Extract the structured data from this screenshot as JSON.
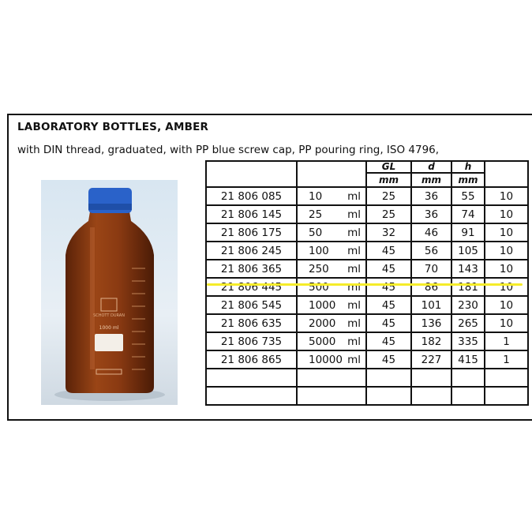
{
  "title": "LABORATORY BOTTLES, AMBER",
  "subtitle": "with DIN thread, graduated,  with  PP blue screw cap, PP pouring ring,  ISO 4796,",
  "headers": [
    {
      "top": "",
      "unit": ""
    },
    {
      "top": "",
      "unit": ""
    },
    {
      "top": "GL",
      "unit": "mm"
    },
    {
      "top": "d",
      "unit": "mm"
    },
    {
      "top": "h",
      "unit": "mm"
    },
    {
      "top": "",
      "unit": ""
    }
  ],
  "rows": [
    {
      "cat": "21 806 085",
      "vol": "10",
      "unit": "ml",
      "gl": "25",
      "d": "36",
      "h": "55",
      "qty": "10"
    },
    {
      "cat": "21 806 145",
      "vol": "25",
      "unit": "ml",
      "gl": "25",
      "d": "36",
      "h": "74",
      "qty": "10"
    },
    {
      "cat": "21 806 175",
      "vol": "50",
      "unit": "ml",
      "gl": "32",
      "d": "46",
      "h": "91",
      "qty": "10"
    },
    {
      "cat": "21 806 245",
      "vol": "100",
      "unit": "ml",
      "gl": "45",
      "d": "56",
      "h": "105",
      "qty": "10"
    },
    {
      "cat": "21 806 365",
      "vol": "250",
      "unit": "ml",
      "gl": "45",
      "d": "70",
      "h": "143",
      "qty": "10"
    },
    {
      "cat": "21 806 445",
      "vol": "500",
      "unit": "ml",
      "gl": "45",
      "d": "86",
      "h": "181",
      "qty": "10"
    },
    {
      "cat": "21 806 545",
      "vol": "1000",
      "unit": "ml",
      "gl": "45",
      "d": "101",
      "h": "230",
      "qty": "10"
    },
    {
      "cat": "21 806 635",
      "vol": "2000",
      "unit": "ml",
      "gl": "45",
      "d": "136",
      "h": "265",
      "qty": "10"
    },
    {
      "cat": "21 806 735",
      "vol": "5000",
      "unit": "ml",
      "gl": "45",
      "d": "182",
      "h": "335",
      "qty": "1"
    },
    {
      "cat": "21 806 865",
      "vol": "10000",
      "unit": "ml",
      "gl": "45",
      "d": "227",
      "h": "415",
      "qty": "1"
    }
  ],
  "photo": {
    "brand": "SCHOTT DURAN",
    "label": "1000 ml",
    "cap_color": "#2a62c9",
    "glass_color": "#8a3a12"
  },
  "highlight_color": "#f5ec2a"
}
